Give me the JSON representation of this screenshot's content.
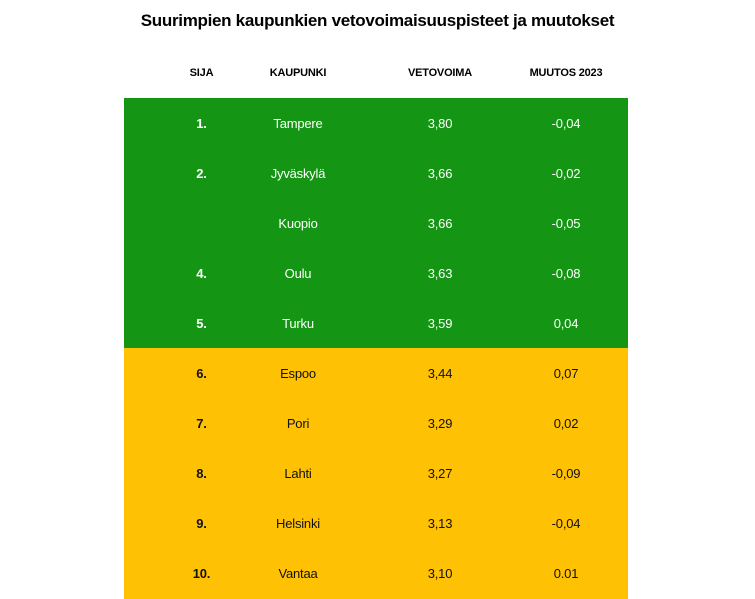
{
  "title": "Suurimpien kaupunkien vetovoimaisuuspisteet ja muutokset",
  "chart_data": {
    "type": "table",
    "title": "Suurimpien kaupunkien vetovoimaisuuspisteet ja muutokset",
    "columns": [
      "SIJA",
      "KAUPUNKI",
      "VETOVOIMA",
      "MUUTOS 2023"
    ],
    "rows": [
      {
        "rank": "1.",
        "city": "Tampere",
        "score": "3,80",
        "change": "-0,04",
        "section": "green"
      },
      {
        "rank": "2.",
        "city": "Jyväskylä",
        "score": "3,66",
        "change": "-0,02",
        "section": "green"
      },
      {
        "rank": "",
        "city": "Kuopio",
        "score": "3,66",
        "change": "-0,05",
        "section": "green"
      },
      {
        "rank": "4.",
        "city": "Oulu",
        "score": "3,63",
        "change": "-0,08",
        "section": "green"
      },
      {
        "rank": "5.",
        "city": "Turku",
        "score": "3,59",
        "change": "0,04",
        "section": "green"
      },
      {
        "rank": "6.",
        "city": "Espoo",
        "score": "3,44",
        "change": "0,07",
        "section": "yellow"
      },
      {
        "rank": "7.",
        "city": "Pori",
        "score": "3,29",
        "change": "0,02",
        "section": "yellow"
      },
      {
        "rank": "8.",
        "city": "Lahti",
        "score": "3,27",
        "change": "-0,09",
        "section": "yellow"
      },
      {
        "rank": "9.",
        "city": "Helsinki",
        "score": "3,13",
        "change": "-0,04",
        "section": "yellow"
      },
      {
        "rank": "10.",
        "city": "Vantaa",
        "score": "3,10",
        "change": "0.01",
        "section": "yellow"
      }
    ],
    "numeric": {
      "vetovoima": [
        3.8,
        3.66,
        3.66,
        3.63,
        3.59,
        3.44,
        3.29,
        3.27,
        3.13,
        3.1
      ],
      "muutos_2023": [
        -0.04,
        -0.02,
        -0.05,
        -0.08,
        0.04,
        0.07,
        0.02,
        -0.09,
        -0.04,
        0.01
      ]
    }
  },
  "colors": {
    "green_section_background": "#149614",
    "green_section_text": "#FFFFFF",
    "yellow_section_background": "#FFC103",
    "yellow_section_text": "#111111",
    "title_text": "#000000",
    "header_text": "#000000",
    "page_background": "#FFFFFF"
  }
}
